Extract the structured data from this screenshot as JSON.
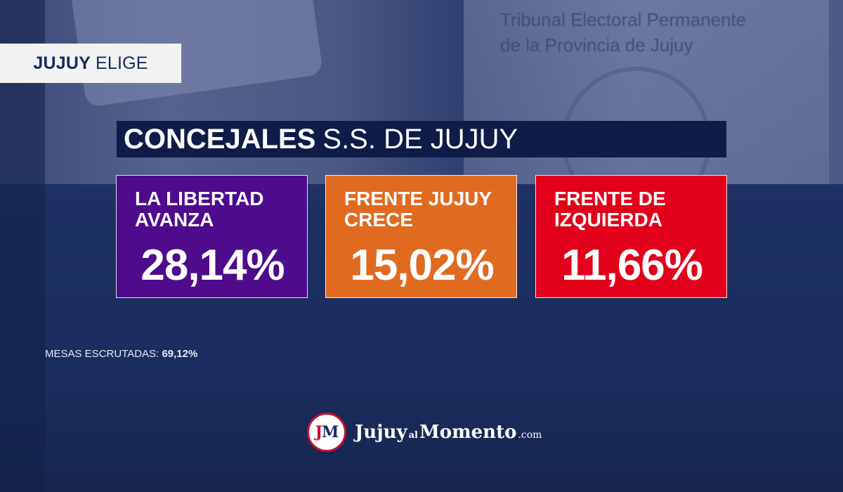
{
  "background": {
    "document_text": "Tribunal Electoral Permanente\nde la Provincia de Jujuy"
  },
  "tag": {
    "bold": "JUJUY",
    "rest": "ELIGE"
  },
  "title": {
    "bold": "CONCEJALES",
    "rest": "S.S. DE JUJUY"
  },
  "results": [
    {
      "party": "LA LIBERTAD AVANZA",
      "percent": "28,14%",
      "color": "#4e0b8c"
    },
    {
      "party": "FRENTE JUJUY CRECE",
      "percent": "15,02%",
      "color": "#e06a20"
    },
    {
      "party": "FRENTE DE IZQUIERDA",
      "percent": "11,66%",
      "color": "#e2001a"
    }
  ],
  "mesas": {
    "label": "MESAS ESCRUTADAS:",
    "value": "69,12%"
  },
  "logo": {
    "badge_j": "J",
    "badge_m": "M",
    "brand_1": "Jujuy",
    "brand_2": "al",
    "brand_3": "Momento",
    "brand_4": ".com"
  }
}
